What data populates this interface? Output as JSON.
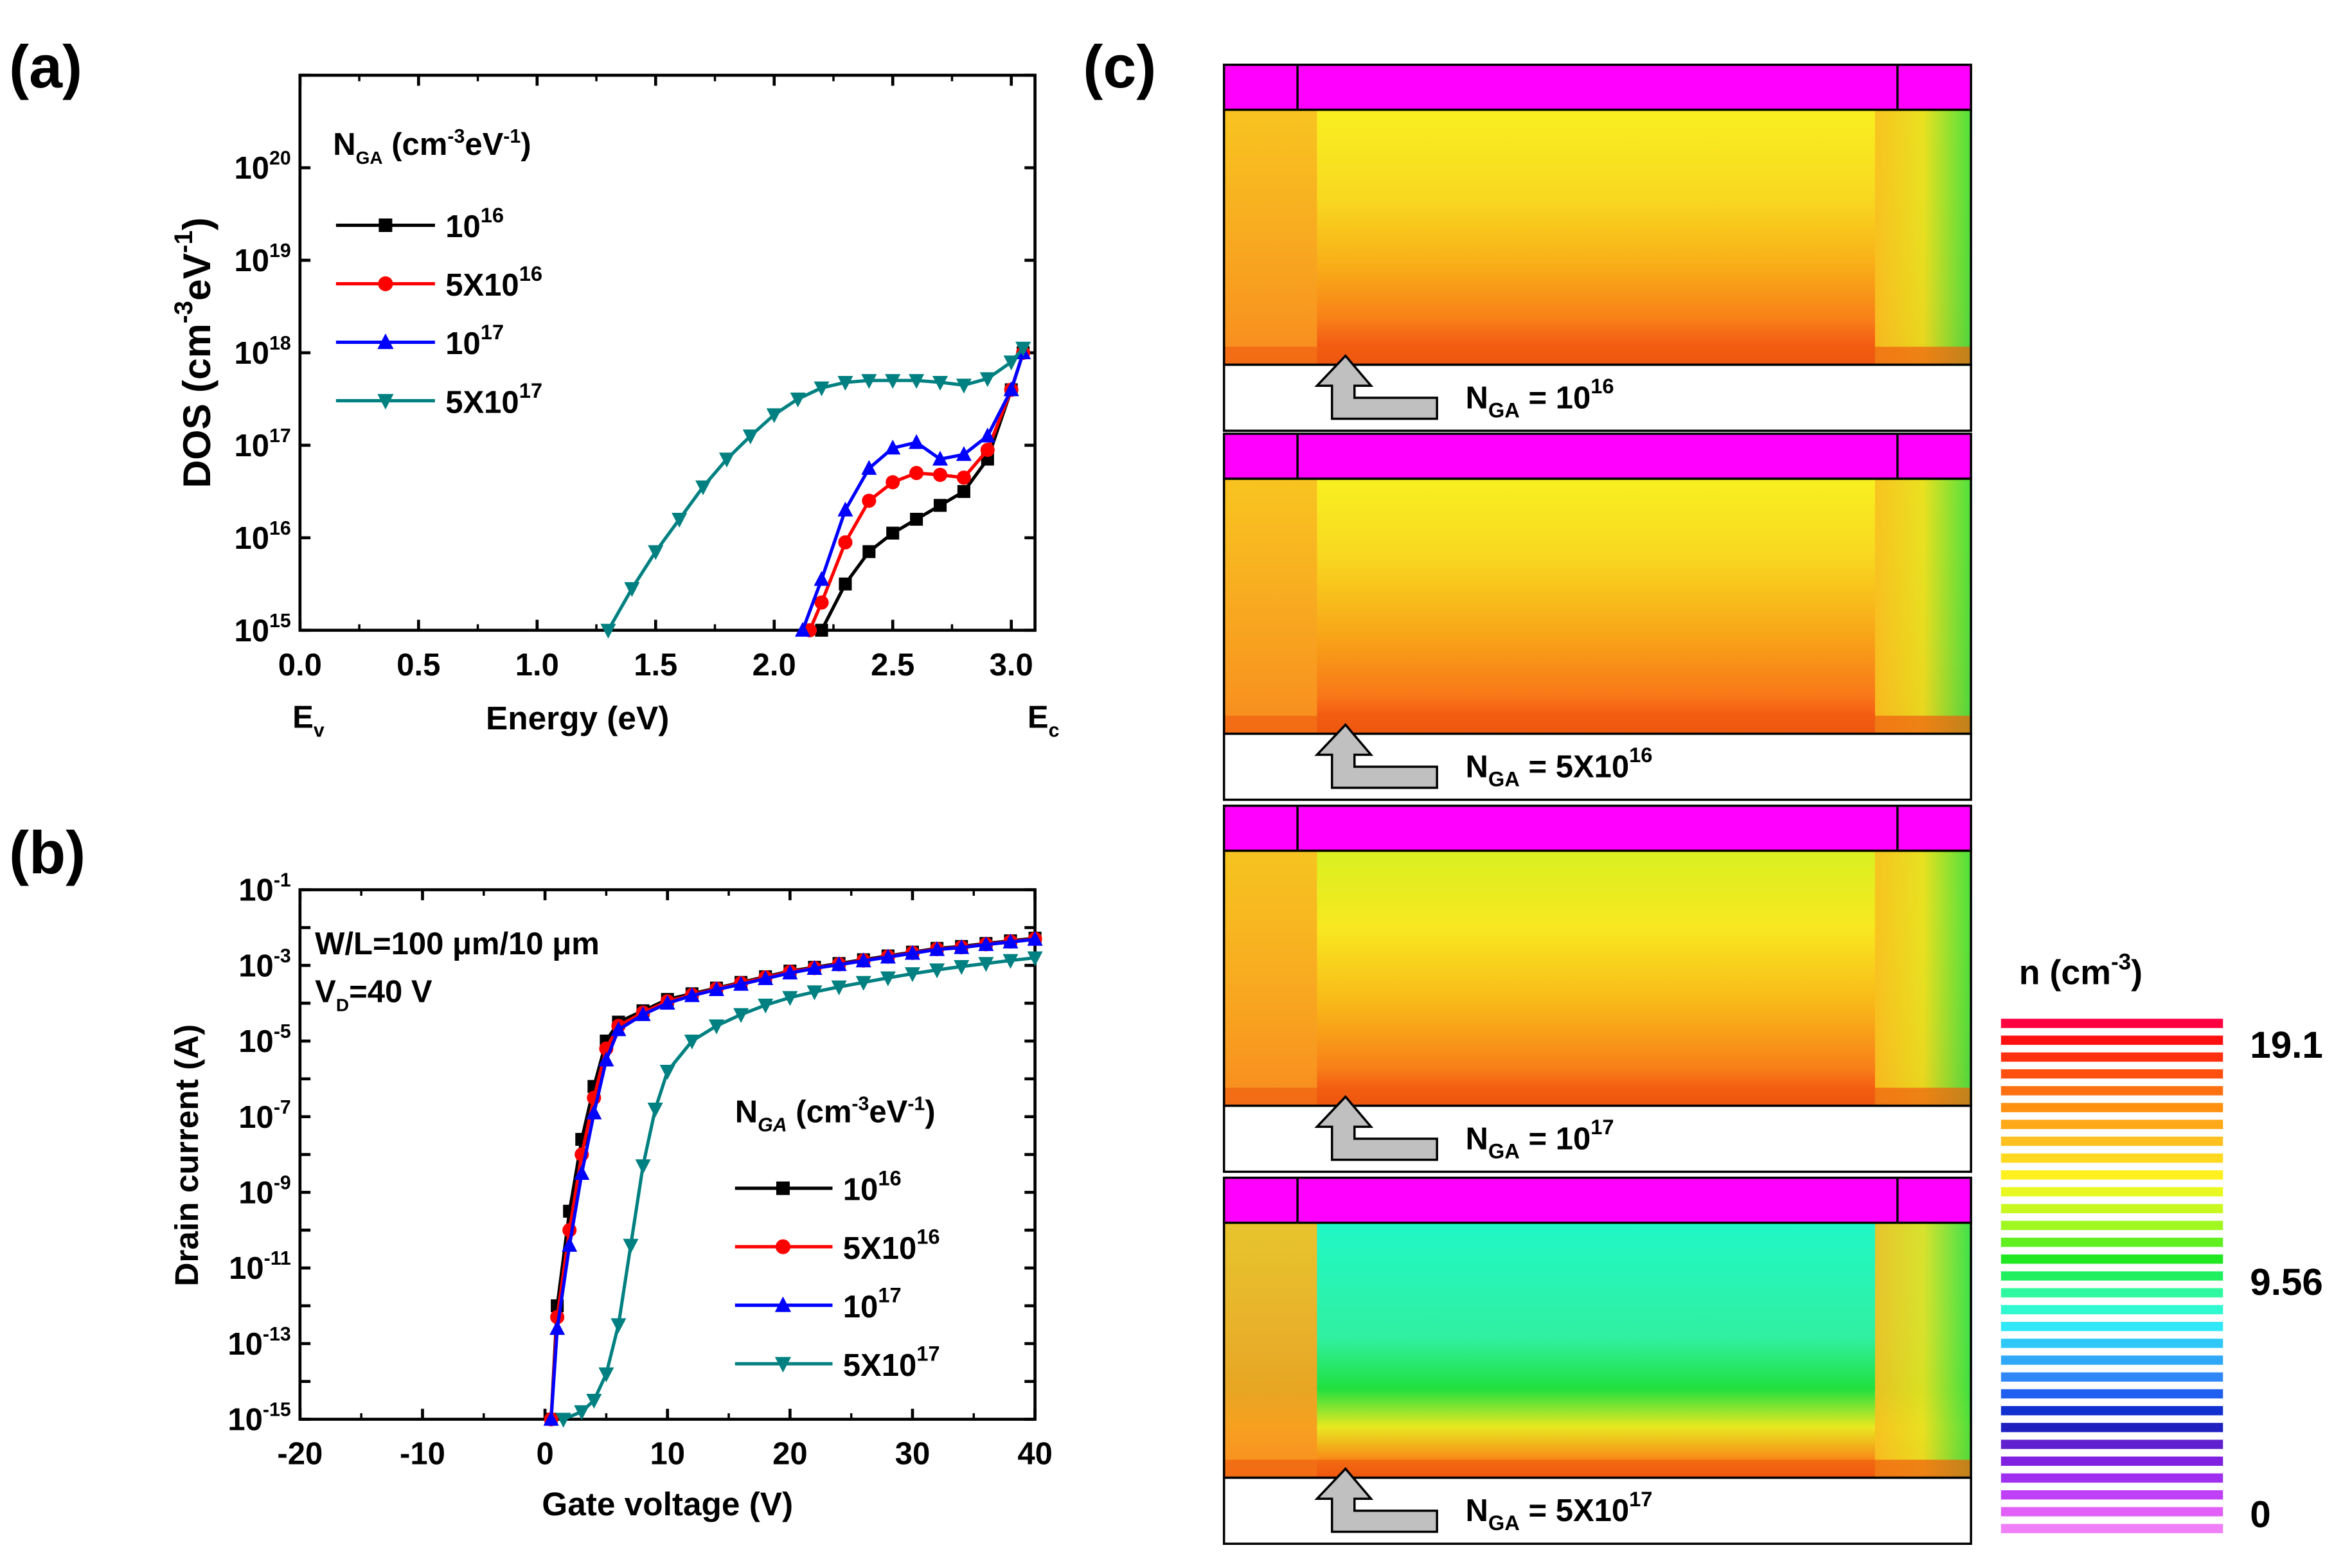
{
  "panels": {
    "a": {
      "label": "(a)",
      "legend_title": "N",
      "legend_title_sub": "GA",
      "legend_title_unit_a": " (cm",
      "legend_title_unit_b": "-3",
      "legend_title_unit_c": "eV",
      "legend_title_unit_d": "-1",
      "legend_title_unit_e": ")",
      "ylabel_main": "DOS (cm",
      "ylabel_sup1": "-3",
      "ylabel_mid": "eV",
      "ylabel_sup2": "-1",
      "ylabel_end": ")",
      "ev_label": "E",
      "ev_sub": "v",
      "ec_label": "E",
      "ec_sub": "c"
    },
    "b": {
      "label": "(b)",
      "annot_line1": "W/L=100 μm/10 μm",
      "annot_line2_a": "V",
      "annot_line2_sub": "D",
      "annot_line2_b": "=40 V",
      "legend_title": "N",
      "legend_title_sub": "GA",
      "legend_title_unit_a": " (cm",
      "legend_title_unit_b": "-3",
      "legend_title_unit_c": "eV",
      "legend_title_unit_d": "-1",
      "legend_title_unit_e": ")"
    },
    "c": {
      "label": "(c)",
      "maps": [
        {
          "name": "N",
          "sub": "GA",
          "eq": " = ",
          "base": "10",
          "exp": "16"
        },
        {
          "name": "N",
          "sub": "GA",
          "eq": " = ",
          "base": "5X10",
          "exp": "16"
        },
        {
          "name": "N",
          "sub": "GA",
          "eq": " = ",
          "base": "10",
          "exp": "17"
        },
        {
          "name": "N",
          "sub": "GA",
          "eq": " = ",
          "base": "5X10",
          "exp": "17"
        }
      ],
      "colorbar": {
        "title_a": "n (cm",
        "title_sup": "-3",
        "title_b": ")",
        "ticks": [
          "19.1",
          "9.56",
          "0"
        ]
      }
    }
  },
  "colors": {
    "s1": "#000000",
    "s2": "#ff0000",
    "s3": "#0000ff",
    "s4": "#008080",
    "bar": "#ff00ff"
  },
  "chart_data": [
    {
      "type": "scatter",
      "title": "(a)",
      "xlabel": "Energy (eV)",
      "ylabel": "DOS (cm-3eV-1)",
      "xlim": [
        0.0,
        3.1
      ],
      "ylim_log10": [
        15,
        21
      ],
      "yscale": "log",
      "x_ticks": [
        "0.0",
        "0.5",
        "1.0",
        "1.5",
        "2.0",
        "2.5",
        "3.0"
      ],
      "y_ticks": [
        {
          "b": "10",
          "e": "15"
        },
        {
          "b": "10",
          "e": "16"
        },
        {
          "b": "10",
          "e": "17"
        },
        {
          "b": "10",
          "e": "18"
        },
        {
          "b": "10",
          "e": "19"
        },
        {
          "b": "10",
          "e": "20"
        }
      ],
      "legend_position": "top-left",
      "series": [
        {
          "name": "10^16",
          "label_base": "10",
          "label_exp": "16",
          "marker": "square",
          "color": "#000000",
          "x": [
            2.2,
            2.3,
            2.4,
            2.5,
            2.6,
            2.7,
            2.8,
            2.9,
            3.0,
            3.05
          ],
          "log10y": [
            14.9,
            15.5,
            15.85,
            16.05,
            16.2,
            16.35,
            16.5,
            16.85,
            17.6,
            18.0
          ]
        },
        {
          "name": "5X10^16",
          "label_base": "5X10",
          "label_exp": "16",
          "marker": "circle",
          "color": "#ff0000",
          "x": [
            2.15,
            2.2,
            2.3,
            2.4,
            2.5,
            2.6,
            2.7,
            2.8,
            2.9,
            3.0,
            3.05
          ],
          "log10y": [
            14.9,
            15.3,
            15.95,
            16.4,
            16.6,
            16.7,
            16.68,
            16.65,
            16.95,
            17.6,
            18.0
          ]
        },
        {
          "name": "10^17",
          "label_base": "10",
          "label_exp": "17",
          "marker": "triangle-up",
          "color": "#0000ff",
          "x": [
            2.12,
            2.2,
            2.3,
            2.4,
            2.5,
            2.6,
            2.7,
            2.8,
            2.9,
            3.0,
            3.05
          ],
          "log10y": [
            14.9,
            15.55,
            16.3,
            16.75,
            16.97,
            17.03,
            16.85,
            16.9,
            17.1,
            17.6,
            18.0
          ]
        },
        {
          "name": "5X10^17",
          "label_base": "5X10",
          "label_exp": "17",
          "marker": "triangle-down",
          "color": "#008080",
          "x": [
            1.3,
            1.4,
            1.5,
            1.6,
            1.7,
            1.8,
            1.9,
            2.0,
            2.1,
            2.2,
            2.3,
            2.4,
            2.5,
            2.6,
            2.7,
            2.8,
            2.9,
            3.0,
            3.05
          ],
          "log10y": [
            15.0,
            15.45,
            15.85,
            16.2,
            16.55,
            16.85,
            17.1,
            17.33,
            17.5,
            17.62,
            17.68,
            17.7,
            17.7,
            17.7,
            17.68,
            17.65,
            17.72,
            17.9,
            18.05
          ]
        }
      ]
    },
    {
      "type": "scatter",
      "title": "(b)",
      "xlabel": "Gate voltage (V)",
      "ylabel": "Drain current (A)",
      "xlim": [
        -20,
        40
      ],
      "ylim_log10": [
        -15,
        -1
      ],
      "yscale": "log",
      "x_ticks": [
        "-20",
        "-10",
        "0",
        "10",
        "20",
        "30",
        "40"
      ],
      "y_ticks": [
        {
          "b": "10",
          "e": "-15"
        },
        {
          "b": "10",
          "e": "-13"
        },
        {
          "b": "10",
          "e": "-11"
        },
        {
          "b": "10",
          "e": "-9"
        },
        {
          "b": "10",
          "e": "-7"
        },
        {
          "b": "10",
          "e": "-5"
        },
        {
          "b": "10",
          "e": "-3"
        },
        {
          "b": "10",
          "e": "-1"
        }
      ],
      "legend_position": "center-right",
      "series": [
        {
          "name": "10^16",
          "label_base": "10",
          "label_exp": "16",
          "marker": "square",
          "color": "#000000",
          "x": [
            0.5,
            1,
            2,
            3,
            4,
            5,
            6,
            8,
            10,
            12,
            14,
            16,
            18,
            20,
            22,
            24,
            26,
            28,
            30,
            32,
            34,
            36,
            38,
            40
          ],
          "log10y": [
            -15,
            -12,
            -9.5,
            -7.6,
            -6.2,
            -5.0,
            -4.5,
            -4.2,
            -3.9,
            -3.75,
            -3.6,
            -3.45,
            -3.3,
            -3.15,
            -3.05,
            -2.95,
            -2.85,
            -2.75,
            -2.65,
            -2.55,
            -2.5,
            -2.42,
            -2.35,
            -2.28
          ]
        },
        {
          "name": "5X10^16",
          "label_base": "5X10",
          "label_exp": "16",
          "marker": "circle",
          "color": "#ff0000",
          "x": [
            0.5,
            1,
            2,
            3,
            4,
            5,
            6,
            8,
            10,
            12,
            14,
            16,
            18,
            20,
            22,
            24,
            26,
            28,
            30,
            32,
            34,
            36,
            38,
            40
          ],
          "log10y": [
            -15,
            -12.3,
            -10.0,
            -8.0,
            -6.5,
            -5.2,
            -4.6,
            -4.25,
            -3.95,
            -3.78,
            -3.62,
            -3.47,
            -3.32,
            -3.17,
            -3.07,
            -2.97,
            -2.87,
            -2.77,
            -2.67,
            -2.57,
            -2.52,
            -2.44,
            -2.37,
            -2.3
          ]
        },
        {
          "name": "10^17",
          "label_base": "10",
          "label_exp": "17",
          "marker": "triangle-up",
          "color": "#0000ff",
          "x": [
            0.5,
            1,
            2,
            3,
            4,
            5,
            6,
            8,
            10,
            12,
            14,
            16,
            18,
            20,
            22,
            24,
            26,
            28,
            30,
            32,
            34,
            36,
            38,
            40
          ],
          "log10y": [
            -15,
            -12.6,
            -10.4,
            -8.5,
            -6.9,
            -5.5,
            -4.7,
            -4.3,
            -4.0,
            -3.8,
            -3.64,
            -3.5,
            -3.35,
            -3.2,
            -3.08,
            -2.98,
            -2.88,
            -2.78,
            -2.68,
            -2.58,
            -2.53,
            -2.45,
            -2.38,
            -2.31
          ]
        },
        {
          "name": "5X10^17",
          "label_base": "5X10",
          "label_exp": "17",
          "marker": "triangle-down",
          "color": "#008080",
          "x": [
            1.5,
            3,
            4,
            5,
            6,
            7,
            8,
            9,
            10,
            12,
            14,
            16,
            18,
            20,
            22,
            24,
            26,
            28,
            30,
            32,
            34,
            36,
            38,
            40
          ],
          "log10y": [
            -15,
            -14.8,
            -14.5,
            -13.8,
            -12.5,
            -10.4,
            -8.3,
            -6.8,
            -5.8,
            -5.0,
            -4.6,
            -4.3,
            -4.05,
            -3.85,
            -3.7,
            -3.57,
            -3.45,
            -3.33,
            -3.22,
            -3.12,
            -3.03,
            -2.95,
            -2.87,
            -2.8
          ]
        }
      ]
    },
    {
      "type": "heatmap",
      "title": "(c)",
      "colorbar_label": "n (cm-3)",
      "colorbar_range": [
        0,
        19.1
      ],
      "colorbar_ticks": [
        19.1,
        9.56,
        0
      ],
      "panels": [
        "N_GA = 10^16",
        "N_GA = 5X10^16",
        "N_GA = 10^17",
        "N_GA = 5X10^17"
      ]
    }
  ]
}
